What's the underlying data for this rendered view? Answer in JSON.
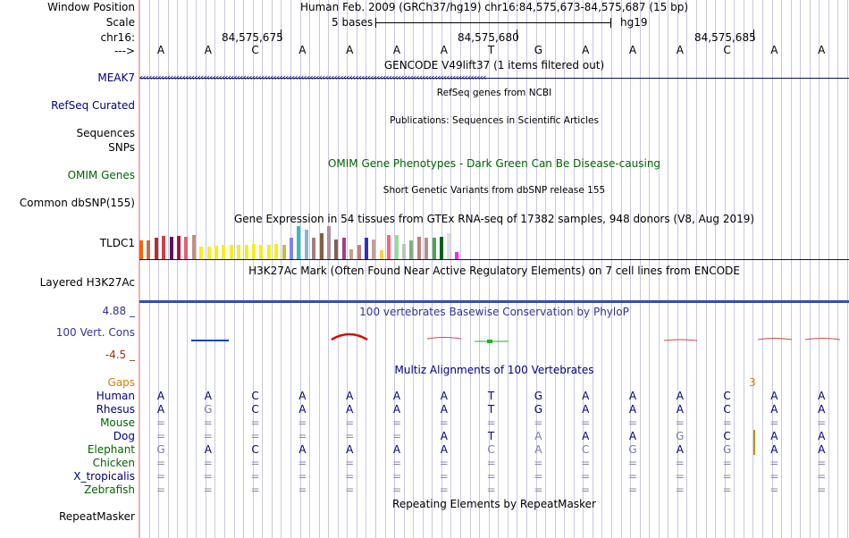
{
  "header": {
    "window_position_label": "Window Position",
    "window_position_value": "Human Feb. 2009 (GRCh37/hg19)   chr16:84,575,673-84,575,687 (15 bp)",
    "scale_label": "Scale",
    "scale_value": "5 bases",
    "scale_assembly": "hg19",
    "chrom_label": "chr16:",
    "coords": [
      "84,575,675",
      "84,575,680",
      "84,575,685"
    ],
    "arrow_label": "--->",
    "bases": [
      "A",
      "A",
      "C",
      "A",
      "A",
      "A",
      "A",
      "T",
      "G",
      "A",
      "A",
      "A",
      "C",
      "A",
      "A"
    ]
  },
  "tracks": {
    "gencode": {
      "title": "GENCODE V49lift37 (1 items filtered out)",
      "gene": "MEAK7",
      "strand_arrows": "‹‹‹‹‹‹‹‹‹‹‹‹‹‹‹‹‹‹‹‹‹‹‹‹‹‹‹‹‹‹‹‹‹‹‹‹‹‹‹‹‹‹‹‹‹‹‹‹‹‹‹‹‹‹‹‹‹‹‹‹‹‹‹‹‹‹‹‹‹‹‹‹‹‹‹‹‹‹‹‹‹‹‹‹‹‹‹‹‹‹‹‹‹‹‹‹‹‹‹‹‹‹‹‹‹‹‹‹‹‹‹‹‹‹"
    },
    "refseq": {
      "label": "RefSeq Curated",
      "title": "RefSeq genes from NCBI"
    },
    "publications": {
      "label": "Sequences",
      "title": "Publications: Sequences in Scientific Articles"
    },
    "snps": {
      "label": "SNPs"
    },
    "omim": {
      "label": "OMIM Genes",
      "title": "OMIM Gene Phenotypes - Dark Green Can Be Disease-causing"
    },
    "dbsnp": {
      "label": "Common dbSNP(155)",
      "title": "Short Genetic Variants from dbSNP release 155"
    },
    "gtex": {
      "label": "TLDC1",
      "title": "Gene Expression in 54 tissues from GTEx RNA-seq of 17382 samples, 948 donors (V8, Aug 2019)"
    },
    "h3k27ac": {
      "label": "Layered H3K27Ac",
      "title": "H3K27Ac Mark (Often Found Near Active Regulatory Elements) on 7 cell lines from ENCODE"
    },
    "phylop": {
      "label": "100 Vert. Cons",
      "ymax": "4.88 _",
      "ymin": "-4.5 _",
      "title": "100 vertebrates Basewise Conservation by PhyloP"
    },
    "multiz": {
      "title": "Multiz Alignments of 100 Vertebrates",
      "gaps_label": "Gaps",
      "gaps_value": "3",
      "species": [
        {
          "name": "Human",
          "bases": [
            "A",
            "A",
            "C",
            "A",
            "A",
            "A",
            "A",
            "T",
            "G",
            "A",
            "A",
            "A",
            "C",
            "A",
            "A"
          ]
        },
        {
          "name": "Rhesus",
          "bases": [
            "A",
            "G",
            "C",
            "A",
            "A",
            "A",
            "A",
            "T",
            "G",
            "A",
            "A",
            "A",
            "C",
            "A",
            "A"
          ]
        },
        {
          "name": "Mouse",
          "bases": [
            "=",
            "=",
            "=",
            "=",
            "=",
            "=",
            "=",
            "=",
            "=",
            "=",
            "=",
            "=",
            "=",
            "=",
            "="
          ]
        },
        {
          "name": "Dog",
          "bases": [
            "=",
            "=",
            "=",
            "=",
            "=",
            "=",
            "A",
            "T",
            "A",
            "A",
            "A",
            "G",
            "C",
            "A",
            "A"
          ]
        },
        {
          "name": "Elephant",
          "bases": [
            "G",
            "A",
            "C",
            "A",
            "A",
            "A",
            "A",
            "C",
            "A",
            "C",
            "G",
            "A",
            "G",
            "A",
            "A"
          ]
        },
        {
          "name": "Chicken",
          "bases": [
            "=",
            "=",
            "=",
            "=",
            "=",
            "=",
            "=",
            "=",
            "=",
            "=",
            "=",
            "=",
            "=",
            "=",
            "="
          ]
        },
        {
          "name": "X_tropicalis",
          "bases": [
            "=",
            "=",
            "=",
            "=",
            "=",
            "=",
            "=",
            "=",
            "=",
            "=",
            "=",
            "=",
            "=",
            "=",
            "="
          ]
        },
        {
          "name": "Zebrafish",
          "bases": [
            "=",
            "=",
            "=",
            "=",
            "=",
            "=",
            "=",
            "=",
            "=",
            "=",
            "=",
            "=",
            "=",
            "=",
            "="
          ]
        }
      ]
    },
    "repeatmasker": {
      "label": "RepeatMasker",
      "title": "Repeating Elements by RepeatMasker"
    }
  },
  "colors": {
    "navy": "#000080",
    "dark_green": "#006400",
    "gaps_orange": "#d08000",
    "grid": "#c8c8e0",
    "gencode_blue": "#0c0c78",
    "h3k27ac_blue": "#3050b0"
  }
}
